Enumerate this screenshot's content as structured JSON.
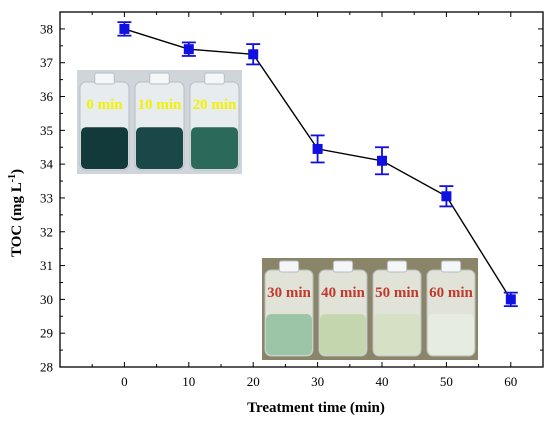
{
  "chart_data": {
    "type": "line",
    "xlabel": "Treatment time (min)",
    "ylabel": "TOC (mg L",
    "ylabel_sup": "-1",
    "ylabel_close": ")",
    "xlim": [
      -10,
      65
    ],
    "ylim": [
      28,
      38.5
    ],
    "x_ticks": [
      0,
      10,
      20,
      30,
      40,
      50,
      60
    ],
    "y_ticks": [
      28,
      29,
      30,
      31,
      32,
      33,
      34,
      35,
      36,
      37,
      38
    ],
    "grid": false,
    "series": [
      {
        "x": [
          0,
          10,
          20,
          30,
          40,
          50,
          60
        ],
        "y": [
          38.0,
          37.4,
          37.25,
          34.45,
          34.1,
          33.05,
          30.0
        ],
        "error": [
          0.2,
          0.2,
          0.3,
          0.4,
          0.4,
          0.3,
          0.2
        ],
        "color": "#1010e0",
        "line_color": "#000000",
        "marker": "square"
      }
    ],
    "insets": [
      {
        "labels": [
          "0 min",
          "10 min",
          "20 min"
        ],
        "label_color": "#f2f200",
        "liquid_colors": [
          "#123a3a",
          "#1a4848",
          "#2b6a5a"
        ]
      },
      {
        "labels": [
          "30 min",
          "40 min",
          "50 min",
          "60 min"
        ],
        "label_color": "#c0392b",
        "liquid_colors": [
          "#9cc4a6",
          "#c4d6ad",
          "#d5e0c5",
          "#e6ece0"
        ]
      }
    ]
  }
}
